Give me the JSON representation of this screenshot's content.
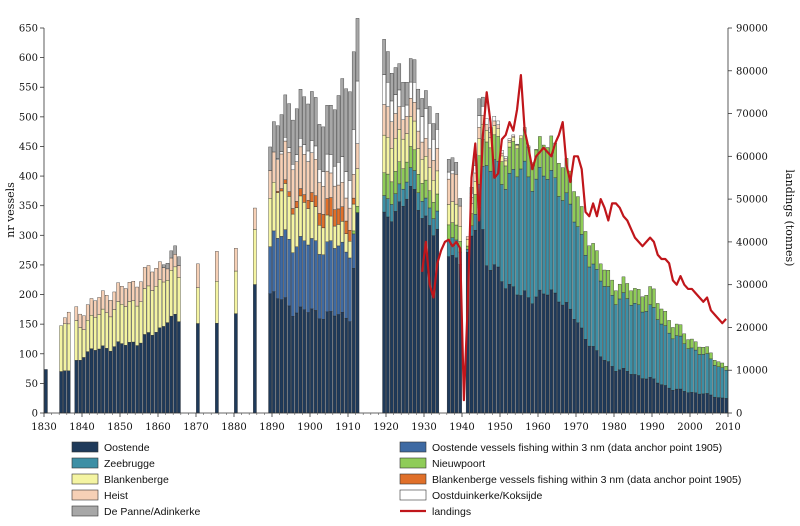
{
  "chart_data": {
    "type": "bar",
    "stacked": true,
    "ylabel": "nr vessels",
    "y2label": "landings (tonnes)",
    "ylim": [
      0,
      650
    ],
    "y2lim": [
      0,
      90000
    ],
    "xlim": [
      1830,
      2010
    ],
    "x_ticks": [
      1830,
      1840,
      1850,
      1860,
      1870,
      1880,
      1890,
      1900,
      1910,
      1920,
      1930,
      1940,
      1950,
      1960,
      1970,
      1980,
      1990,
      2000,
      2010
    ],
    "y_ticks": [
      0,
      50,
      100,
      150,
      200,
      250,
      300,
      350,
      400,
      450,
      500,
      550,
      600,
      650
    ],
    "y2_ticks": [
      0,
      10000,
      20000,
      30000,
      40000,
      50000,
      60000,
      70000,
      80000,
      90000
    ],
    "series": [
      {
        "key": "oost",
        "name": "Oostende",
        "color": "#1f3a5a"
      },
      {
        "key": "o3nm",
        "name": "Oostende vessels fishing within 3 nm (data anchor point 1905)",
        "color": "#3e6aa3"
      },
      {
        "key": "zee",
        "name": "Zeebrugge",
        "color": "#3d8fa5"
      },
      {
        "key": "nieuw",
        "name": "Nieuwpoort",
        "color": "#8fcc58"
      },
      {
        "key": "blank",
        "name": "Blankenberge",
        "color": "#f4f4a2"
      },
      {
        "key": "b3nm",
        "name": "Blankenberge vessels fishing within 3 nm (data anchor point 1905)",
        "color": "#e0702a"
      },
      {
        "key": "heist",
        "name": "Heist",
        "color": "#f6d0b6"
      },
      {
        "key": "okok",
        "name": "Oostduinkerke/Koksijde",
        "color": "#ffffff"
      },
      {
        "key": "depan",
        "name": "De Panne/Adinkerke",
        "color": "#a7a7a7"
      }
    ],
    "line_series": {
      "name": "landings",
      "color": "#c0161b",
      "axis": "right"
    },
    "anchors": [
      {
        "year": 1830,
        "oost": 70
      },
      {
        "year": 1834,
        "oost": 68,
        "blank": 75
      },
      {
        "year": 1836,
        "oost": 72,
        "blank": 80,
        "heist": 20
      },
      {
        "year": 1840,
        "oost": 100,
        "blank": 50,
        "heist": 25
      },
      {
        "year": 1845,
        "oost": 110,
        "blank": 60,
        "heist": 30
      },
      {
        "year": 1850,
        "oost": 115,
        "blank": 65,
        "heist": 30
      },
      {
        "year": 1855,
        "oost": 122,
        "blank": 72,
        "heist": 35
      },
      {
        "year": 1860,
        "oost": 142,
        "blank": 80,
        "heist": 30
      },
      {
        "year": 1862,
        "oost": 160,
        "blank": 75,
        "heist": 20,
        "depan": 10
      },
      {
        "year": 1865,
        "oost": 155,
        "blank": 75,
        "heist": 20,
        "depan": 15
      },
      {
        "year": 1870,
        "oost": 150,
        "blank": 60,
        "heist": 40
      },
      {
        "year": 1875,
        "oost": 150,
        "blank": 70,
        "heist": 50
      },
      {
        "year": 1880,
        "oost": 175,
        "blank": 75,
        "heist": 40
      },
      {
        "year": 1885,
        "oost": 210,
        "blank": 90,
        "heist": 35
      },
      {
        "year": 1890,
        "oost": 200,
        "o3nm": 100,
        "blank": 80,
        "heist": 50,
        "depan": 50
      },
      {
        "year": 1895,
        "oost": 175,
        "o3nm": 115,
        "blank": 70,
        "b3nm": 10,
        "heist": 70,
        "okok": 10,
        "depan": 80
      },
      {
        "year": 1900,
        "oost": 170,
        "o3nm": 115,
        "blank": 60,
        "b3nm": 15,
        "heist": 65,
        "okok": 20,
        "depan": 80
      },
      {
        "year": 1905,
        "oost": 165,
        "o3nm": 115,
        "blank": 40,
        "b3nm": 30,
        "heist": 40,
        "okok": 30,
        "depan": 80
      },
      {
        "year": 1910,
        "oost": 165,
        "o3nm": 115,
        "blank": 30,
        "b3nm": 20,
        "heist": 40,
        "okok": 50,
        "depan": 160
      },
      {
        "year": 1912,
        "oost": 320,
        "nieuw": 10,
        "blank": 60,
        "heist": 40,
        "okok": 100,
        "depan": 100
      },
      {
        "year": 1920,
        "oost": 320,
        "zee": 30,
        "nieuw": 40,
        "blank": 60,
        "heist": 50,
        "okok": 40,
        "depan": 50
      },
      {
        "year": 1925,
        "oost": 375,
        "zee": 30,
        "nieuw": 35,
        "blank": 50,
        "heist": 30,
        "okok": 20,
        "depan": 40
      },
      {
        "year": 1930,
        "oost": 330,
        "zee": 30,
        "nieuw": 30,
        "blank": 40,
        "heist": 30,
        "okok": 50,
        "depan": 30
      },
      {
        "year": 1938,
        "oost": 260,
        "zee": 30,
        "nieuw": 25,
        "blank": 35,
        "heist": 50,
        "depan": 20
      },
      {
        "year": 1941,
        "oost": 255,
        "zee": 5,
        "nieuw": 5,
        "blank": 10,
        "heist": 5
      },
      {
        "year": 1944,
        "oost": 360,
        "zee": 40,
        "nieuw": 50,
        "blank": 30,
        "heist": 20,
        "okok": 20,
        "depan": 30
      },
      {
        "year": 1946,
        "oost": 250,
        "zee": 170,
        "nieuw": 40,
        "blank": 20,
        "heist": 10,
        "okok": 10
      },
      {
        "year": 1950,
        "oost": 230,
        "zee": 170,
        "nieuw": 40,
        "blank": 10,
        "heist": 5,
        "okok": 5
      },
      {
        "year": 1955,
        "oost": 195,
        "zee": 210,
        "nieuw": 50,
        "blank": 5
      },
      {
        "year": 1960,
        "oost": 200,
        "zee": 200,
        "nieuw": 50
      },
      {
        "year": 1965,
        "oost": 200,
        "zee": 190,
        "nieuw": 60
      },
      {
        "year": 1970,
        "oost": 150,
        "zee": 160,
        "nieuw": 50
      },
      {
        "year": 1975,
        "oost": 100,
        "zee": 130,
        "nieuw": 30
      },
      {
        "year": 1980,
        "oost": 75,
        "zee": 120,
        "nieuw": 25
      },
      {
        "year": 1985,
        "oost": 65,
        "zee": 120,
        "nieuw": 25
      },
      {
        "year": 1990,
        "oost": 55,
        "zee": 115,
        "nieuw": 30
      },
      {
        "year": 1995,
        "oost": 40,
        "zee": 90,
        "nieuw": 20
      },
      {
        "year": 2000,
        "oost": 35,
        "zee": 75,
        "nieuw": 15
      },
      {
        "year": 2005,
        "oost": 30,
        "zee": 60,
        "nieuw": 10
      },
      {
        "year": 2008,
        "oost": 25,
        "zee": 50,
        "nieuw": 8
      },
      {
        "year": 2009,
        "oost": 25,
        "zee": 48,
        "nieuw": 7
      }
    ],
    "years_with_data": [
      [
        1830,
        1830
      ],
      [
        1834,
        1836
      ],
      [
        1838,
        1838
      ],
      [
        1839,
        1865
      ],
      [
        1870,
        1870
      ],
      [
        1875,
        1875
      ],
      [
        1880,
        1880
      ],
      [
        1885,
        1885
      ],
      [
        1889,
        1912
      ],
      [
        1919,
        1933
      ],
      [
        1936,
        1939
      ],
      [
        1941,
        2009
      ]
    ],
    "landings": [
      [
        1929,
        33000
      ],
      [
        1930,
        40000
      ],
      [
        1931,
        30000
      ],
      [
        1932,
        27000
      ],
      [
        1933,
        35000
      ],
      [
        1934,
        38000
      ],
      [
        1935,
        40000
      ],
      [
        1936,
        40500
      ],
      [
        1937,
        39000
      ],
      [
        1938,
        40000
      ],
      [
        1939,
        38500
      ],
      [
        1940,
        3000
      ],
      [
        1941,
        25000
      ],
      [
        1942,
        55000
      ],
      [
        1943,
        63000
      ],
      [
        1944,
        45000
      ],
      [
        1945,
        65000
      ],
      [
        1946,
        75000
      ],
      [
        1947,
        68000
      ],
      [
        1948,
        55000
      ],
      [
        1949,
        56000
      ],
      [
        1950,
        64000
      ],
      [
        1951,
        65000
      ],
      [
        1952,
        68000
      ],
      [
        1953,
        66000
      ],
      [
        1954,
        71000
      ],
      [
        1955,
        79000
      ],
      [
        1956,
        66000
      ],
      [
        1957,
        62000
      ],
      [
        1958,
        57000
      ],
      [
        1959,
        60000
      ],
      [
        1960,
        61000
      ],
      [
        1961,
        62000
      ],
      [
        1962,
        61000
      ],
      [
        1963,
        60000
      ],
      [
        1964,
        63000
      ],
      [
        1965,
        65000
      ],
      [
        1966,
        68000
      ],
      [
        1967,
        58000
      ],
      [
        1968,
        54000
      ],
      [
        1969,
        60000
      ],
      [
        1970,
        60000
      ],
      [
        1971,
        57000
      ],
      [
        1972,
        47000
      ],
      [
        1973,
        46000
      ],
      [
        1974,
        49000
      ],
      [
        1975,
        46000
      ],
      [
        1976,
        50000
      ],
      [
        1977,
        48000
      ],
      [
        1978,
        45000
      ],
      [
        1979,
        49000
      ],
      [
        1980,
        49000
      ],
      [
        1981,
        48000
      ],
      [
        1982,
        46000
      ],
      [
        1983,
        45000
      ],
      [
        1984,
        43000
      ],
      [
        1985,
        41000
      ],
      [
        1986,
        40000
      ],
      [
        1987,
        39000
      ],
      [
        1988,
        40000
      ],
      [
        1989,
        41000
      ],
      [
        1990,
        40000
      ],
      [
        1991,
        37000
      ],
      [
        1992,
        36000
      ],
      [
        1993,
        36000
      ],
      [
        1994,
        35000
      ],
      [
        1995,
        31000
      ],
      [
        1996,
        30000
      ],
      [
        1997,
        32000
      ],
      [
        1998,
        30000
      ],
      [
        1999,
        29000
      ],
      [
        2000,
        29000
      ],
      [
        2001,
        28000
      ],
      [
        2002,
        27000
      ],
      [
        2003,
        26000
      ],
      [
        2004,
        27000
      ],
      [
        2005,
        24000
      ],
      [
        2006,
        23000
      ],
      [
        2007,
        22000
      ],
      [
        2008,
        21000
      ],
      [
        2009,
        22000
      ]
    ],
    "legend_placement": "bottom",
    "grid": false
  }
}
